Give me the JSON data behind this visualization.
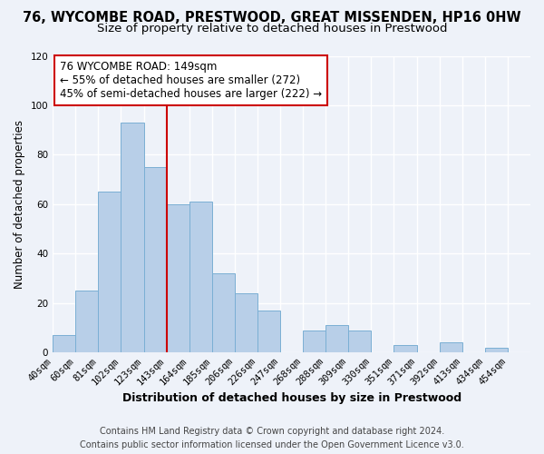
{
  "title_line1": "76, WYCOMBE ROAD, PRESTWOOD, GREAT MISSENDEN, HP16 0HW",
  "title_line2": "Size of property relative to detached houses in Prestwood",
  "xlabel": "Distribution of detached houses by size in Prestwood",
  "ylabel": "Number of detached properties",
  "bin_labels": [
    "40sqm",
    "60sqm",
    "81sqm",
    "102sqm",
    "123sqm",
    "143sqm",
    "164sqm",
    "185sqm",
    "206sqm",
    "226sqm",
    "247sqm",
    "268sqm",
    "288sqm",
    "309sqm",
    "330sqm",
    "351sqm",
    "371sqm",
    "392sqm",
    "413sqm",
    "434sqm",
    "454sqm"
  ],
  "bar_values": [
    7,
    25,
    65,
    93,
    75,
    60,
    61,
    32,
    24,
    17,
    0,
    9,
    11,
    9,
    0,
    3,
    0,
    4,
    0,
    2,
    0
  ],
  "bar_color": "#b8cfe8",
  "bar_edge_color": "#7bafd4",
  "vline_x": 5.0,
  "vline_color": "#cc0000",
  "annotation_title": "76 WYCOMBE ROAD: 149sqm",
  "annotation_line2": "← 55% of detached houses are smaller (272)",
  "annotation_line3": "45% of semi-detached houses are larger (222) →",
  "annotation_box_color": "#ffffff",
  "annotation_box_edge": "#cc0000",
  "ylim": [
    0,
    120
  ],
  "yticks": [
    0,
    20,
    40,
    60,
    80,
    100,
    120
  ],
  "footer_line1": "Contains HM Land Registry data © Crown copyright and database right 2024.",
  "footer_line2": "Contains public sector information licensed under the Open Government Licence v3.0.",
  "background_color": "#eef2f9",
  "grid_color": "#ffffff",
  "title_fontsize": 10.5,
  "subtitle_fontsize": 9.5,
  "xlabel_fontsize": 9,
  "ylabel_fontsize": 8.5,
  "tick_fontsize": 7.5,
  "annotation_fontsize": 8.5,
  "footer_fontsize": 7
}
